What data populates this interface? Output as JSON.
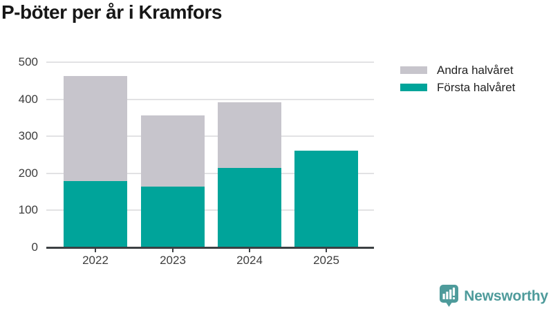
{
  "title": "P-böter per år i Kramfors",
  "chart_data": {
    "type": "bar",
    "stacked": true,
    "title": "P-böter per år i Kramfors",
    "categories": [
      "2022",
      "2023",
      "2024",
      "2025"
    ],
    "series": [
      {
        "name": "Första halvåret",
        "color": "#00A49A",
        "values": [
          180,
          165,
          215,
          262
        ]
      },
      {
        "name": "Andra halvåret",
        "color": "#C7C5CC",
        "values": [
          282,
          192,
          177,
          0
        ]
      }
    ],
    "ylim": [
      0,
      500
    ],
    "yticks": [
      0,
      100,
      200,
      300,
      400,
      500
    ],
    "xlabel": "",
    "ylabel": "",
    "grid": "horizontal",
    "legend_position": "top-right",
    "legend": [
      {
        "label": "Andra halvåret",
        "color": "#C7C5CC"
      },
      {
        "label": "Första halvåret",
        "color": "#00A49A"
      }
    ]
  },
  "branding": {
    "logo_text": "Newsworthy",
    "logo_color": "#4E9B9B",
    "logo_icon": "bar-chart-speech-bubble-icon"
  },
  "colors": {
    "first_half": "#00A49A",
    "second_half": "#C7C5CC",
    "grid": "#E2E2E4",
    "axis": "#3C4043",
    "tick_text": "#3D3D3D",
    "title_text": "#171717"
  }
}
